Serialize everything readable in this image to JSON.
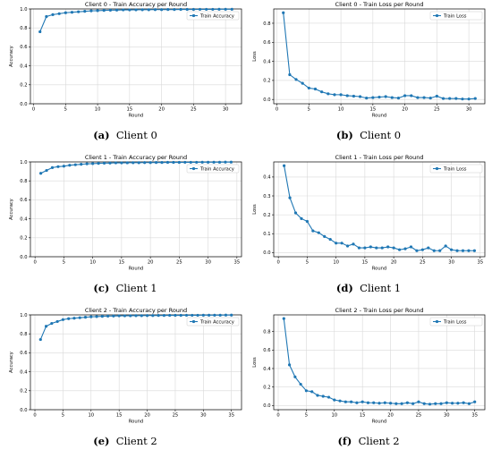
{
  "figure": {
    "panels": [
      {
        "letter": "(a)",
        "caption": "Client 0"
      },
      {
        "letter": "(b)",
        "caption": "Client 0"
      },
      {
        "letter": "(c)",
        "caption": "Client 1"
      },
      {
        "letter": "(d)",
        "caption": "Client 1"
      },
      {
        "letter": "(e)",
        "caption": "Client 2"
      },
      {
        "letter": "(f)",
        "caption": "Client 2"
      }
    ]
  },
  "colors": {
    "series": "#1f77b4",
    "grid": "#d9d9d9",
    "axis": "#000000"
  },
  "chart_data": [
    {
      "type": "line",
      "title": "Client 0 - Train Accuracy per Round",
      "xlabel": "Round",
      "ylabel": "Accuracy",
      "xlim": [
        -0.5,
        32.5
      ],
      "ylim": [
        0,
        1.0
      ],
      "xticks": [
        0,
        5,
        10,
        15,
        20,
        25,
        30
      ],
      "yticks": [
        0.0,
        0.2,
        0.4,
        0.6,
        0.8,
        1.0
      ],
      "ytick_labels": [
        "0.0",
        "0.2",
        "0.4",
        "0.6",
        "0.8",
        "1.0"
      ],
      "grid": true,
      "legend": "top-right",
      "series": [
        {
          "name": "Train Accuracy",
          "x": [
            1,
            2,
            3,
            4,
            5,
            6,
            7,
            8,
            9,
            10,
            11,
            12,
            13,
            14,
            15,
            16,
            17,
            18,
            19,
            20,
            21,
            22,
            23,
            24,
            25,
            26,
            27,
            28,
            29,
            30,
            31
          ],
          "values": [
            0.76,
            0.92,
            0.94,
            0.95,
            0.96,
            0.965,
            0.97,
            0.975,
            0.98,
            0.982,
            0.985,
            0.987,
            0.988,
            0.99,
            0.99,
            0.991,
            0.992,
            0.992,
            0.993,
            0.993,
            0.994,
            0.994,
            0.995,
            0.995,
            0.995,
            0.996,
            0.996,
            0.996,
            0.997,
            0.997,
            0.997
          ]
        }
      ]
    },
    {
      "type": "line",
      "title": "Client 0 - Train Loss per Round",
      "xlabel": "Round",
      "ylabel": "Loss",
      "xlim": [
        -0.5,
        32.5
      ],
      "ylim": [
        -0.045,
        0.95
      ],
      "xticks": [
        0,
        5,
        10,
        15,
        20,
        25,
        30
      ],
      "yticks": [
        0.0,
        0.2,
        0.4,
        0.6,
        0.8
      ],
      "ytick_labels": [
        "0.0",
        "0.2",
        "0.4",
        "0.6",
        "0.8"
      ],
      "grid": true,
      "legend": "top-right",
      "series": [
        {
          "name": "Train Loss",
          "x": [
            1,
            2,
            3,
            4,
            5,
            6,
            7,
            8,
            9,
            10,
            11,
            12,
            13,
            14,
            15,
            16,
            17,
            18,
            19,
            20,
            21,
            22,
            23,
            24,
            25,
            26,
            27,
            28,
            29,
            30,
            31
          ],
          "values": [
            0.91,
            0.26,
            0.21,
            0.17,
            0.12,
            0.11,
            0.08,
            0.06,
            0.05,
            0.05,
            0.04,
            0.035,
            0.03,
            0.015,
            0.02,
            0.025,
            0.03,
            0.02,
            0.015,
            0.04,
            0.04,
            0.02,
            0.02,
            0.015,
            0.035,
            0.01,
            0.01,
            0.01,
            0.005,
            0.005,
            0.01
          ]
        }
      ]
    },
    {
      "type": "line",
      "title": "Client 1 - Train Accuracy per Round",
      "xlabel": "Round",
      "ylabel": "Accuracy",
      "xlim": [
        -0.8,
        35.8
      ],
      "ylim": [
        0,
        1.0
      ],
      "xticks": [
        0,
        5,
        10,
        15,
        20,
        25,
        30,
        35
      ],
      "yticks": [
        0.0,
        0.2,
        0.4,
        0.6,
        0.8,
        1.0
      ],
      "ytick_labels": [
        "0.0",
        "0.2",
        "0.4",
        "0.6",
        "0.8",
        "1.0"
      ],
      "grid": true,
      "legend": "top-right",
      "series": [
        {
          "name": "Train Accuracy",
          "x": [
            1,
            2,
            3,
            4,
            5,
            6,
            7,
            8,
            9,
            10,
            11,
            12,
            13,
            14,
            15,
            16,
            17,
            18,
            19,
            20,
            21,
            22,
            23,
            24,
            25,
            26,
            27,
            28,
            29,
            30,
            31,
            32,
            33,
            34
          ],
          "values": [
            0.88,
            0.91,
            0.94,
            0.95,
            0.955,
            0.965,
            0.97,
            0.975,
            0.98,
            0.982,
            0.985,
            0.987,
            0.988,
            0.99,
            0.99,
            0.991,
            0.992,
            0.992,
            0.993,
            0.993,
            0.994,
            0.994,
            0.995,
            0.995,
            0.995,
            0.996,
            0.996,
            0.996,
            0.997,
            0.997,
            0.997,
            0.997,
            0.998,
            0.998
          ]
        }
      ]
    },
    {
      "type": "line",
      "title": "Client 1 - Train Loss per Round",
      "xlabel": "Round",
      "ylabel": "Loss",
      "xlim": [
        -0.8,
        35.8
      ],
      "ylim": [
        -0.022,
        0.48
      ],
      "xticks": [
        0,
        5,
        10,
        15,
        20,
        25,
        30,
        35
      ],
      "yticks": [
        0.0,
        0.1,
        0.2,
        0.3,
        0.4
      ],
      "ytick_labels": [
        "0.0",
        "0.1",
        "0.2",
        "0.3",
        "0.4"
      ],
      "grid": true,
      "legend": "top-right",
      "series": [
        {
          "name": "Train Loss",
          "x": [
            1,
            2,
            3,
            4,
            5,
            6,
            7,
            8,
            9,
            10,
            11,
            12,
            13,
            14,
            15,
            16,
            17,
            18,
            19,
            20,
            21,
            22,
            23,
            24,
            25,
            26,
            27,
            28,
            29,
            30,
            31,
            32,
            33,
            34
          ],
          "values": [
            0.46,
            0.29,
            0.21,
            0.18,
            0.165,
            0.115,
            0.105,
            0.085,
            0.07,
            0.05,
            0.05,
            0.035,
            0.045,
            0.025,
            0.025,
            0.03,
            0.025,
            0.025,
            0.03,
            0.025,
            0.015,
            0.02,
            0.03,
            0.01,
            0.015,
            0.025,
            0.01,
            0.01,
            0.035,
            0.015,
            0.01,
            0.01,
            0.01,
            0.01
          ]
        }
      ]
    },
    {
      "type": "line",
      "title": "Client 2 - Train Accuracy per Round",
      "xlabel": "Round",
      "ylabel": "Accuracy",
      "xlim": [
        -0.8,
        36.8
      ],
      "ylim": [
        0,
        1.0
      ],
      "xticks": [
        0,
        5,
        10,
        15,
        20,
        25,
        30,
        35
      ],
      "yticks": [
        0.0,
        0.2,
        0.4,
        0.6,
        0.8,
        1.0
      ],
      "ytick_labels": [
        "0.0",
        "0.2",
        "0.4",
        "0.6",
        "0.8",
        "1.0"
      ],
      "grid": true,
      "legend": "top-right",
      "series": [
        {
          "name": "Train Accuracy",
          "x": [
            1,
            2,
            3,
            4,
            5,
            6,
            7,
            8,
            9,
            10,
            11,
            12,
            13,
            14,
            15,
            16,
            17,
            18,
            19,
            20,
            21,
            22,
            23,
            24,
            25,
            26,
            27,
            28,
            29,
            30,
            31,
            32,
            33,
            34,
            35
          ],
          "values": [
            0.74,
            0.88,
            0.91,
            0.93,
            0.95,
            0.96,
            0.965,
            0.97,
            0.975,
            0.98,
            0.982,
            0.985,
            0.987,
            0.988,
            0.99,
            0.99,
            0.991,
            0.992,
            0.992,
            0.993,
            0.993,
            0.994,
            0.994,
            0.995,
            0.995,
            0.995,
            0.996,
            0.996,
            0.996,
            0.997,
            0.997,
            0.997,
            0.997,
            0.998,
            0.998
          ]
        }
      ]
    },
    {
      "type": "line",
      "title": "Client 2 - Train Loss per Round",
      "xlabel": "Round",
      "ylabel": "Loss",
      "xlim": [
        -0.8,
        36.8
      ],
      "ylim": [
        -0.045,
        0.98
      ],
      "xticks": [
        0,
        5,
        10,
        15,
        20,
        25,
        30,
        35
      ],
      "yticks": [
        0.0,
        0.2,
        0.4,
        0.6,
        0.8
      ],
      "ytick_labels": [
        "0.0",
        "0.2",
        "0.4",
        "0.6",
        "0.8"
      ],
      "grid": true,
      "legend": "top-right",
      "series": [
        {
          "name": "Train Loss",
          "x": [
            1,
            2,
            3,
            4,
            5,
            6,
            7,
            8,
            9,
            10,
            11,
            12,
            13,
            14,
            15,
            16,
            17,
            18,
            19,
            20,
            21,
            22,
            23,
            24,
            25,
            26,
            27,
            28,
            29,
            30,
            31,
            32,
            33,
            34,
            35
          ],
          "values": [
            0.94,
            0.44,
            0.31,
            0.23,
            0.16,
            0.15,
            0.11,
            0.1,
            0.09,
            0.06,
            0.05,
            0.04,
            0.04,
            0.03,
            0.04,
            0.03,
            0.03,
            0.025,
            0.03,
            0.025,
            0.02,
            0.02,
            0.03,
            0.02,
            0.04,
            0.02,
            0.015,
            0.02,
            0.02,
            0.03,
            0.025,
            0.025,
            0.03,
            0.02,
            0.04
          ]
        }
      ]
    }
  ]
}
